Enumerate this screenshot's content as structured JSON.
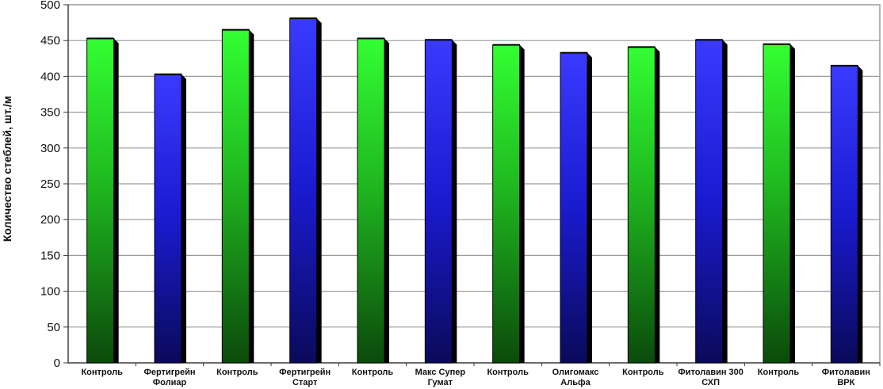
{
  "chart_data": {
    "type": "bar",
    "title": "",
    "xlabel": "",
    "ylabel": "Количество стеблей, шт./м",
    "ylim": [
      0,
      500
    ],
    "yticks": [
      0,
      50,
      100,
      150,
      200,
      250,
      300,
      350,
      400,
      450,
      500
    ],
    "grid": true,
    "legend": "none",
    "categories": [
      [
        "Контроль"
      ],
      [
        "Фертигрейн",
        "Фолиар"
      ],
      [
        "Контроль"
      ],
      [
        "Фертигрейн",
        "Старт"
      ],
      [
        "Контроль"
      ],
      [
        "Макс Супер",
        "Гумат"
      ],
      [
        "Контроль"
      ],
      [
        "Олигомакс",
        "Альфа"
      ],
      [
        "Контроль"
      ],
      [
        "Фитолавин 300",
        "СХП"
      ],
      [
        "Контроль"
      ],
      [
        "Фитолавин",
        "ВРК"
      ]
    ],
    "values": [
      453,
      403,
      465,
      481,
      453,
      451,
      444,
      433,
      441,
      451,
      445,
      415
    ],
    "bar_colors": [
      "green",
      "blue",
      "green",
      "blue",
      "green",
      "blue",
      "green",
      "blue",
      "green",
      "blue",
      "green",
      "blue"
    ],
    "colors": {
      "green": "#22c622",
      "blue": "#1c1ccc"
    }
  }
}
